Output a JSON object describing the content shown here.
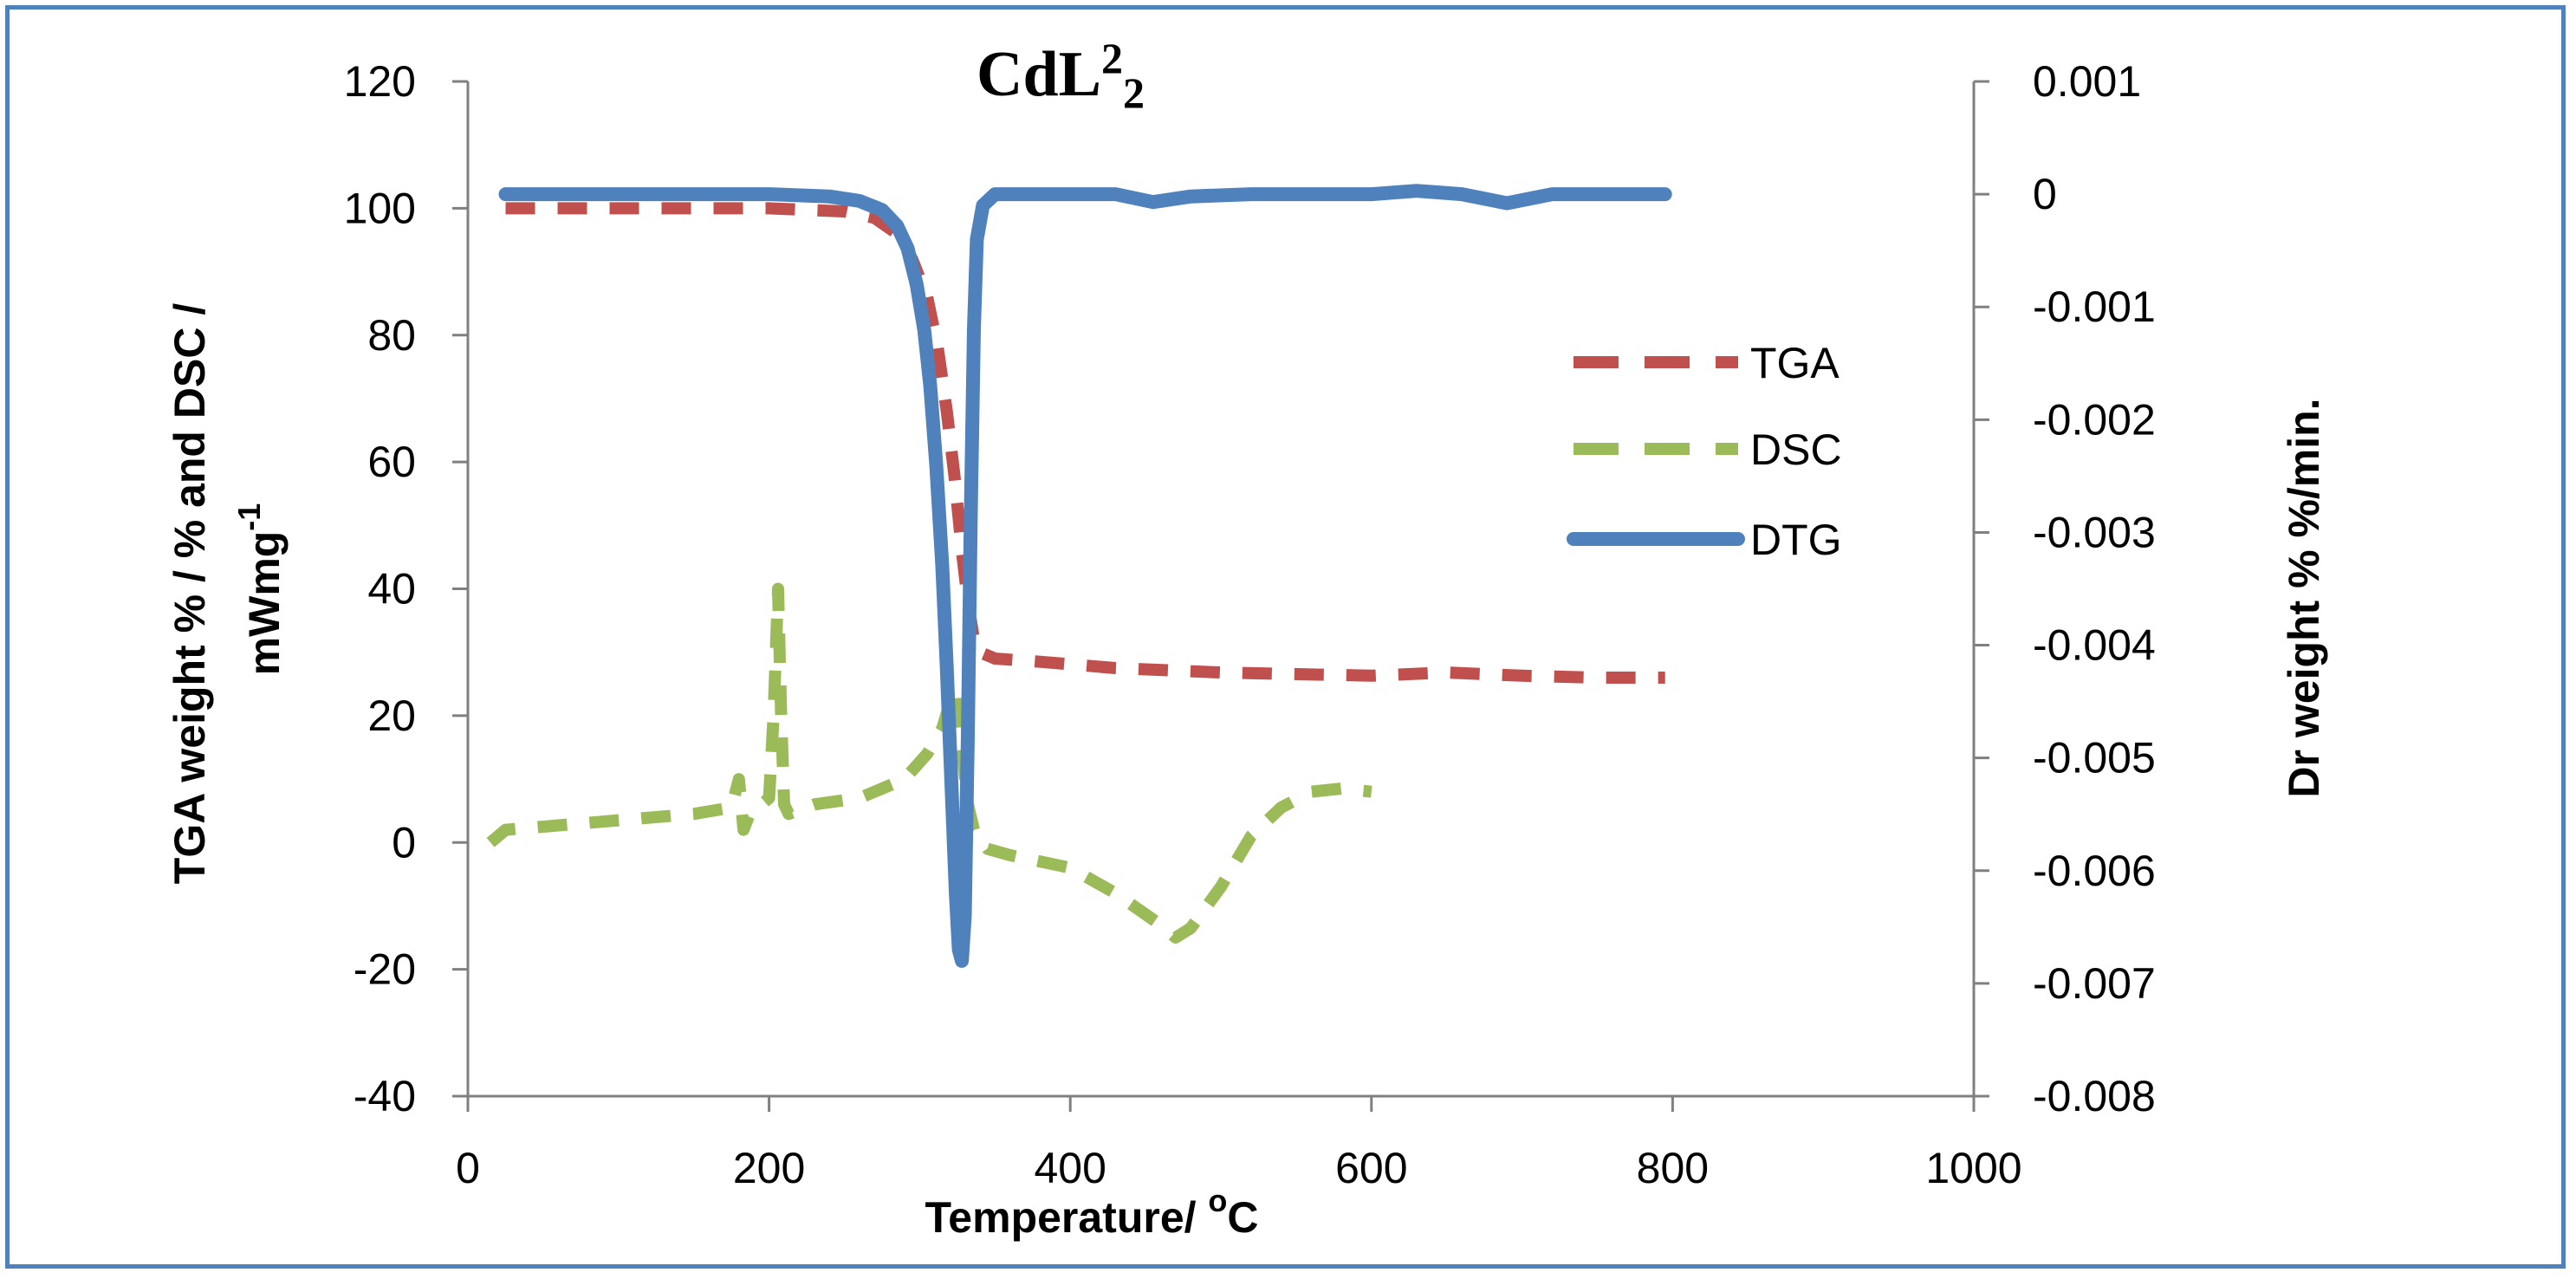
{
  "chart_data": {
    "type": "line",
    "title": "CdL",
    "title_sup": "2",
    "title_sub": "2",
    "xlabel": "Temperature/ ",
    "xlabel_sup": "o",
    "xlabel_tail": "C",
    "ylabel_line1": "TGA weight % / %  and  DSC  /",
    "ylabel_line2": "mWmg",
    "ylabel_line2_sup": "-1",
    "y2label": "Dr weight %  %/min.",
    "xlim": [
      0,
      1000
    ],
    "ylim": [
      -40,
      120
    ],
    "y2lim": [
      -0.008,
      0.001
    ],
    "x_ticks": [
      "0",
      "200",
      "400",
      "600",
      "800",
      "1000"
    ],
    "y_ticks": [
      "-40",
      "-20",
      "0",
      "20",
      "40",
      "60",
      "80",
      "100",
      "120"
    ],
    "y2_ticks": [
      "-0.008",
      "-0.007",
      "-0.006",
      "-0.005",
      "-0.004",
      "-0.003",
      "-0.002",
      "-0.001",
      "0",
      "0.001"
    ],
    "colors": {
      "TGA": "#c0504d",
      "DSC": "#9bbb59",
      "DTG": "#4f81bd",
      "frame": "#4f81bd",
      "axis": "#808080"
    },
    "series": [
      {
        "name": "TGA",
        "axis": "left",
        "style": "dashed",
        "x": [
          25,
          100,
          200,
          250,
          270,
          285,
          295,
          305,
          312,
          318,
          323,
          328,
          332,
          336,
          340,
          350,
          380,
          430,
          500,
          600,
          650,
          700,
          750,
          795
        ],
        "y": [
          100,
          100,
          100,
          99.5,
          98.5,
          96,
          92,
          86,
          78,
          68,
          58,
          46,
          38,
          32,
          30,
          29,
          28.5,
          27.5,
          26.8,
          26.3,
          26.8,
          26.3,
          26.0,
          26.0
        ]
      },
      {
        "name": "DSC",
        "axis": "left",
        "style": "dashed",
        "x": [
          15,
          25,
          50,
          100,
          150,
          175,
          180,
          183,
          188,
          195,
          200,
          203,
          206,
          208,
          210,
          213,
          230,
          260,
          290,
          305,
          315,
          320,
          325,
          328,
          332,
          336,
          345,
          360,
          400,
          430,
          460,
          470,
          480,
          500,
          520,
          540,
          560,
          580,
          600
        ],
        "y": [
          0,
          2,
          2.5,
          3.5,
          4.5,
          5.5,
          10,
          2,
          5,
          6,
          7,
          20,
          40,
          20,
          6,
          4.5,
          6,
          7,
          10,
          14,
          18,
          22,
          24,
          15,
          6,
          2,
          -1,
          -2,
          -4,
          -8,
          -13,
          -15,
          -13.5,
          -7,
          1,
          5.5,
          8,
          8.5,
          8
        ]
      },
      {
        "name": "DTG",
        "axis": "right",
        "style": "solid",
        "x": [
          25,
          100,
          200,
          240,
          260,
          275,
          285,
          292,
          298,
          303,
          307,
          311,
          315,
          318,
          321,
          324,
          326,
          328,
          330,
          332,
          334,
          336,
          338,
          342,
          350,
          370,
          400,
          430,
          455,
          480,
          520,
          560,
          600,
          630,
          660,
          690,
          720,
          760,
          795
        ],
        "y": [
          0,
          0,
          0,
          -2e-05,
          -6e-05,
          -0.00014,
          -0.00028,
          -0.00048,
          -0.0008,
          -0.0012,
          -0.0017,
          -0.0024,
          -0.0033,
          -0.0042,
          -0.0052,
          -0.0062,
          -0.0067,
          -0.0068,
          -0.0064,
          -0.0048,
          -0.0028,
          -0.0012,
          -0.0004,
          -0.0001,
          0,
          0,
          0,
          0,
          -7e-05,
          -2e-05,
          0,
          0,
          0,
          3e-05,
          0,
          -8e-05,
          0,
          0,
          0
        ]
      }
    ],
    "legend": [
      "TGA",
      "DSC",
      "DTG"
    ],
    "legend_position": "right-inside"
  }
}
